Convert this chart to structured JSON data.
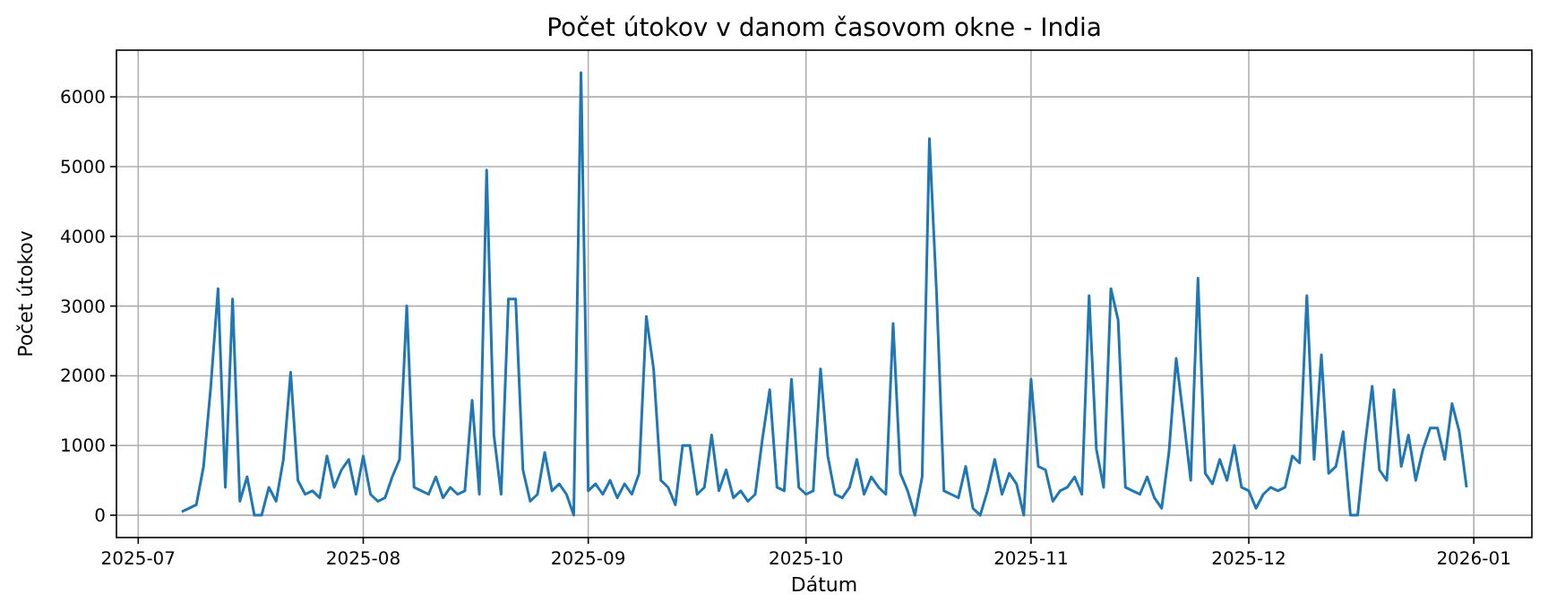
{
  "chart_data": {
    "type": "line",
    "title": "Počet útokov v danom časovom okne - India",
    "xlabel": "Dátum",
    "ylabel": "Počet útokov",
    "grid": true,
    "xlim": [
      "2025-06-28",
      "2026-01-09"
    ],
    "xticks": [
      "2025-07",
      "2025-08",
      "2025-09",
      "2025-10",
      "2025-11",
      "2025-12",
      "2026-01"
    ],
    "ylim": [
      -320,
      6670
    ],
    "yticks": [
      0,
      1000,
      2000,
      3000,
      4000,
      5000,
      6000
    ],
    "x": [
      "2025-07-07",
      "2025-07-08",
      "2025-07-09",
      "2025-07-10",
      "2025-07-11",
      "2025-07-12",
      "2025-07-13",
      "2025-07-14",
      "2025-07-15",
      "2025-07-16",
      "2025-07-17",
      "2025-07-18",
      "2025-07-19",
      "2025-07-20",
      "2025-07-21",
      "2025-07-22",
      "2025-07-23",
      "2025-07-24",
      "2025-07-25",
      "2025-07-26",
      "2025-07-27",
      "2025-07-28",
      "2025-07-29",
      "2025-07-30",
      "2025-07-31",
      "2025-08-01",
      "2025-08-02",
      "2025-08-03",
      "2025-08-04",
      "2025-08-05",
      "2025-08-06",
      "2025-08-07",
      "2025-08-08",
      "2025-08-09",
      "2025-08-10",
      "2025-08-11",
      "2025-08-12",
      "2025-08-13",
      "2025-08-14",
      "2025-08-15",
      "2025-08-16",
      "2025-08-17",
      "2025-08-18",
      "2025-08-19",
      "2025-08-20",
      "2025-08-21",
      "2025-08-22",
      "2025-08-23",
      "2025-08-24",
      "2025-08-25",
      "2025-08-26",
      "2025-08-27",
      "2025-08-28",
      "2025-08-29",
      "2025-08-30",
      "2025-08-31",
      "2025-09-01",
      "2025-09-02",
      "2025-09-03",
      "2025-09-04",
      "2025-09-05",
      "2025-09-06",
      "2025-09-07",
      "2025-09-08",
      "2025-09-09",
      "2025-09-10",
      "2025-09-11",
      "2025-09-12",
      "2025-09-13",
      "2025-09-14",
      "2025-09-15",
      "2025-09-16",
      "2025-09-17",
      "2025-09-18",
      "2025-09-19",
      "2025-09-20",
      "2025-09-21",
      "2025-09-22",
      "2025-09-23",
      "2025-09-24",
      "2025-09-25",
      "2025-09-26",
      "2025-09-27",
      "2025-09-28",
      "2025-09-29",
      "2025-09-30",
      "2025-10-01",
      "2025-10-02",
      "2025-10-03",
      "2025-10-04",
      "2025-10-05",
      "2025-10-06",
      "2025-10-07",
      "2025-10-08",
      "2025-10-09",
      "2025-10-10",
      "2025-10-11",
      "2025-10-12",
      "2025-10-13",
      "2025-10-14",
      "2025-10-15",
      "2025-10-16",
      "2025-10-17",
      "2025-10-18",
      "2025-10-19",
      "2025-10-20",
      "2025-10-21",
      "2025-10-22",
      "2025-10-23",
      "2025-10-24",
      "2025-10-25",
      "2025-10-26",
      "2025-10-27",
      "2025-10-28",
      "2025-10-29",
      "2025-10-30",
      "2025-10-31",
      "2025-11-01",
      "2025-11-02",
      "2025-11-03",
      "2025-11-04",
      "2025-11-05",
      "2025-11-06",
      "2025-11-07",
      "2025-11-08",
      "2025-11-09",
      "2025-11-10",
      "2025-11-11",
      "2025-11-12",
      "2025-11-13",
      "2025-11-14",
      "2025-11-15",
      "2025-11-16",
      "2025-11-17",
      "2025-11-18",
      "2025-11-19",
      "2025-11-20",
      "2025-11-21",
      "2025-11-22",
      "2025-11-23",
      "2025-11-24",
      "2025-11-25",
      "2025-11-26",
      "2025-11-27",
      "2025-11-28",
      "2025-11-29",
      "2025-11-30",
      "2025-12-01",
      "2025-12-02",
      "2025-12-03",
      "2025-12-04",
      "2025-12-05",
      "2025-12-06",
      "2025-12-07",
      "2025-12-08",
      "2025-12-09",
      "2025-12-10",
      "2025-12-11",
      "2025-12-12",
      "2025-12-13",
      "2025-12-14",
      "2025-12-15",
      "2025-12-16",
      "2025-12-17",
      "2025-12-18",
      "2025-12-19",
      "2025-12-20",
      "2025-12-21",
      "2025-12-22",
      "2025-12-23",
      "2025-12-24",
      "2025-12-25",
      "2025-12-26",
      "2025-12-27",
      "2025-12-28",
      "2025-12-29",
      "2025-12-30",
      "2025-12-31"
    ],
    "series": [
      {
        "color": "#1f77b4",
        "values": [
          50,
          100,
          150,
          700,
          1850,
          3250,
          400,
          3100,
          200,
          550,
          0,
          0,
          400,
          200,
          800,
          2050,
          500,
          300,
          350,
          250,
          850,
          400,
          650,
          800,
          300,
          850,
          300,
          200,
          250,
          550,
          800,
          3000,
          400,
          350,
          300,
          550,
          250,
          400,
          300,
          350,
          1650,
          300,
          4950,
          1150,
          300,
          3100,
          3100,
          650,
          200,
          300,
          900,
          350,
          450,
          300,
          0,
          6350,
          350,
          450,
          300,
          500,
          250,
          450,
          300,
          600,
          2850,
          2100,
          500,
          400,
          150,
          1000,
          1000,
          300,
          400,
          1150,
          350,
          650,
          250,
          350,
          200,
          300,
          1100,
          1800,
          400,
          350,
          1950,
          400,
          300,
          350,
          2100,
          850,
          300,
          250,
          400,
          800,
          300,
          550,
          400,
          300,
          2750,
          600,
          350,
          0,
          550,
          5400,
          3150,
          350,
          300,
          250,
          700,
          100,
          0,
          350,
          800,
          300,
          600,
          450,
          0,
          1950,
          700,
          650,
          200,
          350,
          400,
          550,
          300,
          3150,
          950,
          400,
          3250,
          2800,
          400,
          350,
          300,
          550,
          250,
          100,
          900,
          2250,
          1400,
          500,
          3400,
          600,
          450,
          800,
          500,
          1000,
          400,
          350,
          100,
          300,
          400,
          350,
          400,
          850,
          750,
          3150,
          800,
          2300,
          600,
          700,
          1200,
          0,
          0,
          1000,
          1850,
          650,
          500,
          1800,
          700,
          1150,
          500,
          950,
          1250,
          1250,
          800,
          1600,
          1200,
          400
        ]
      }
    ]
  }
}
